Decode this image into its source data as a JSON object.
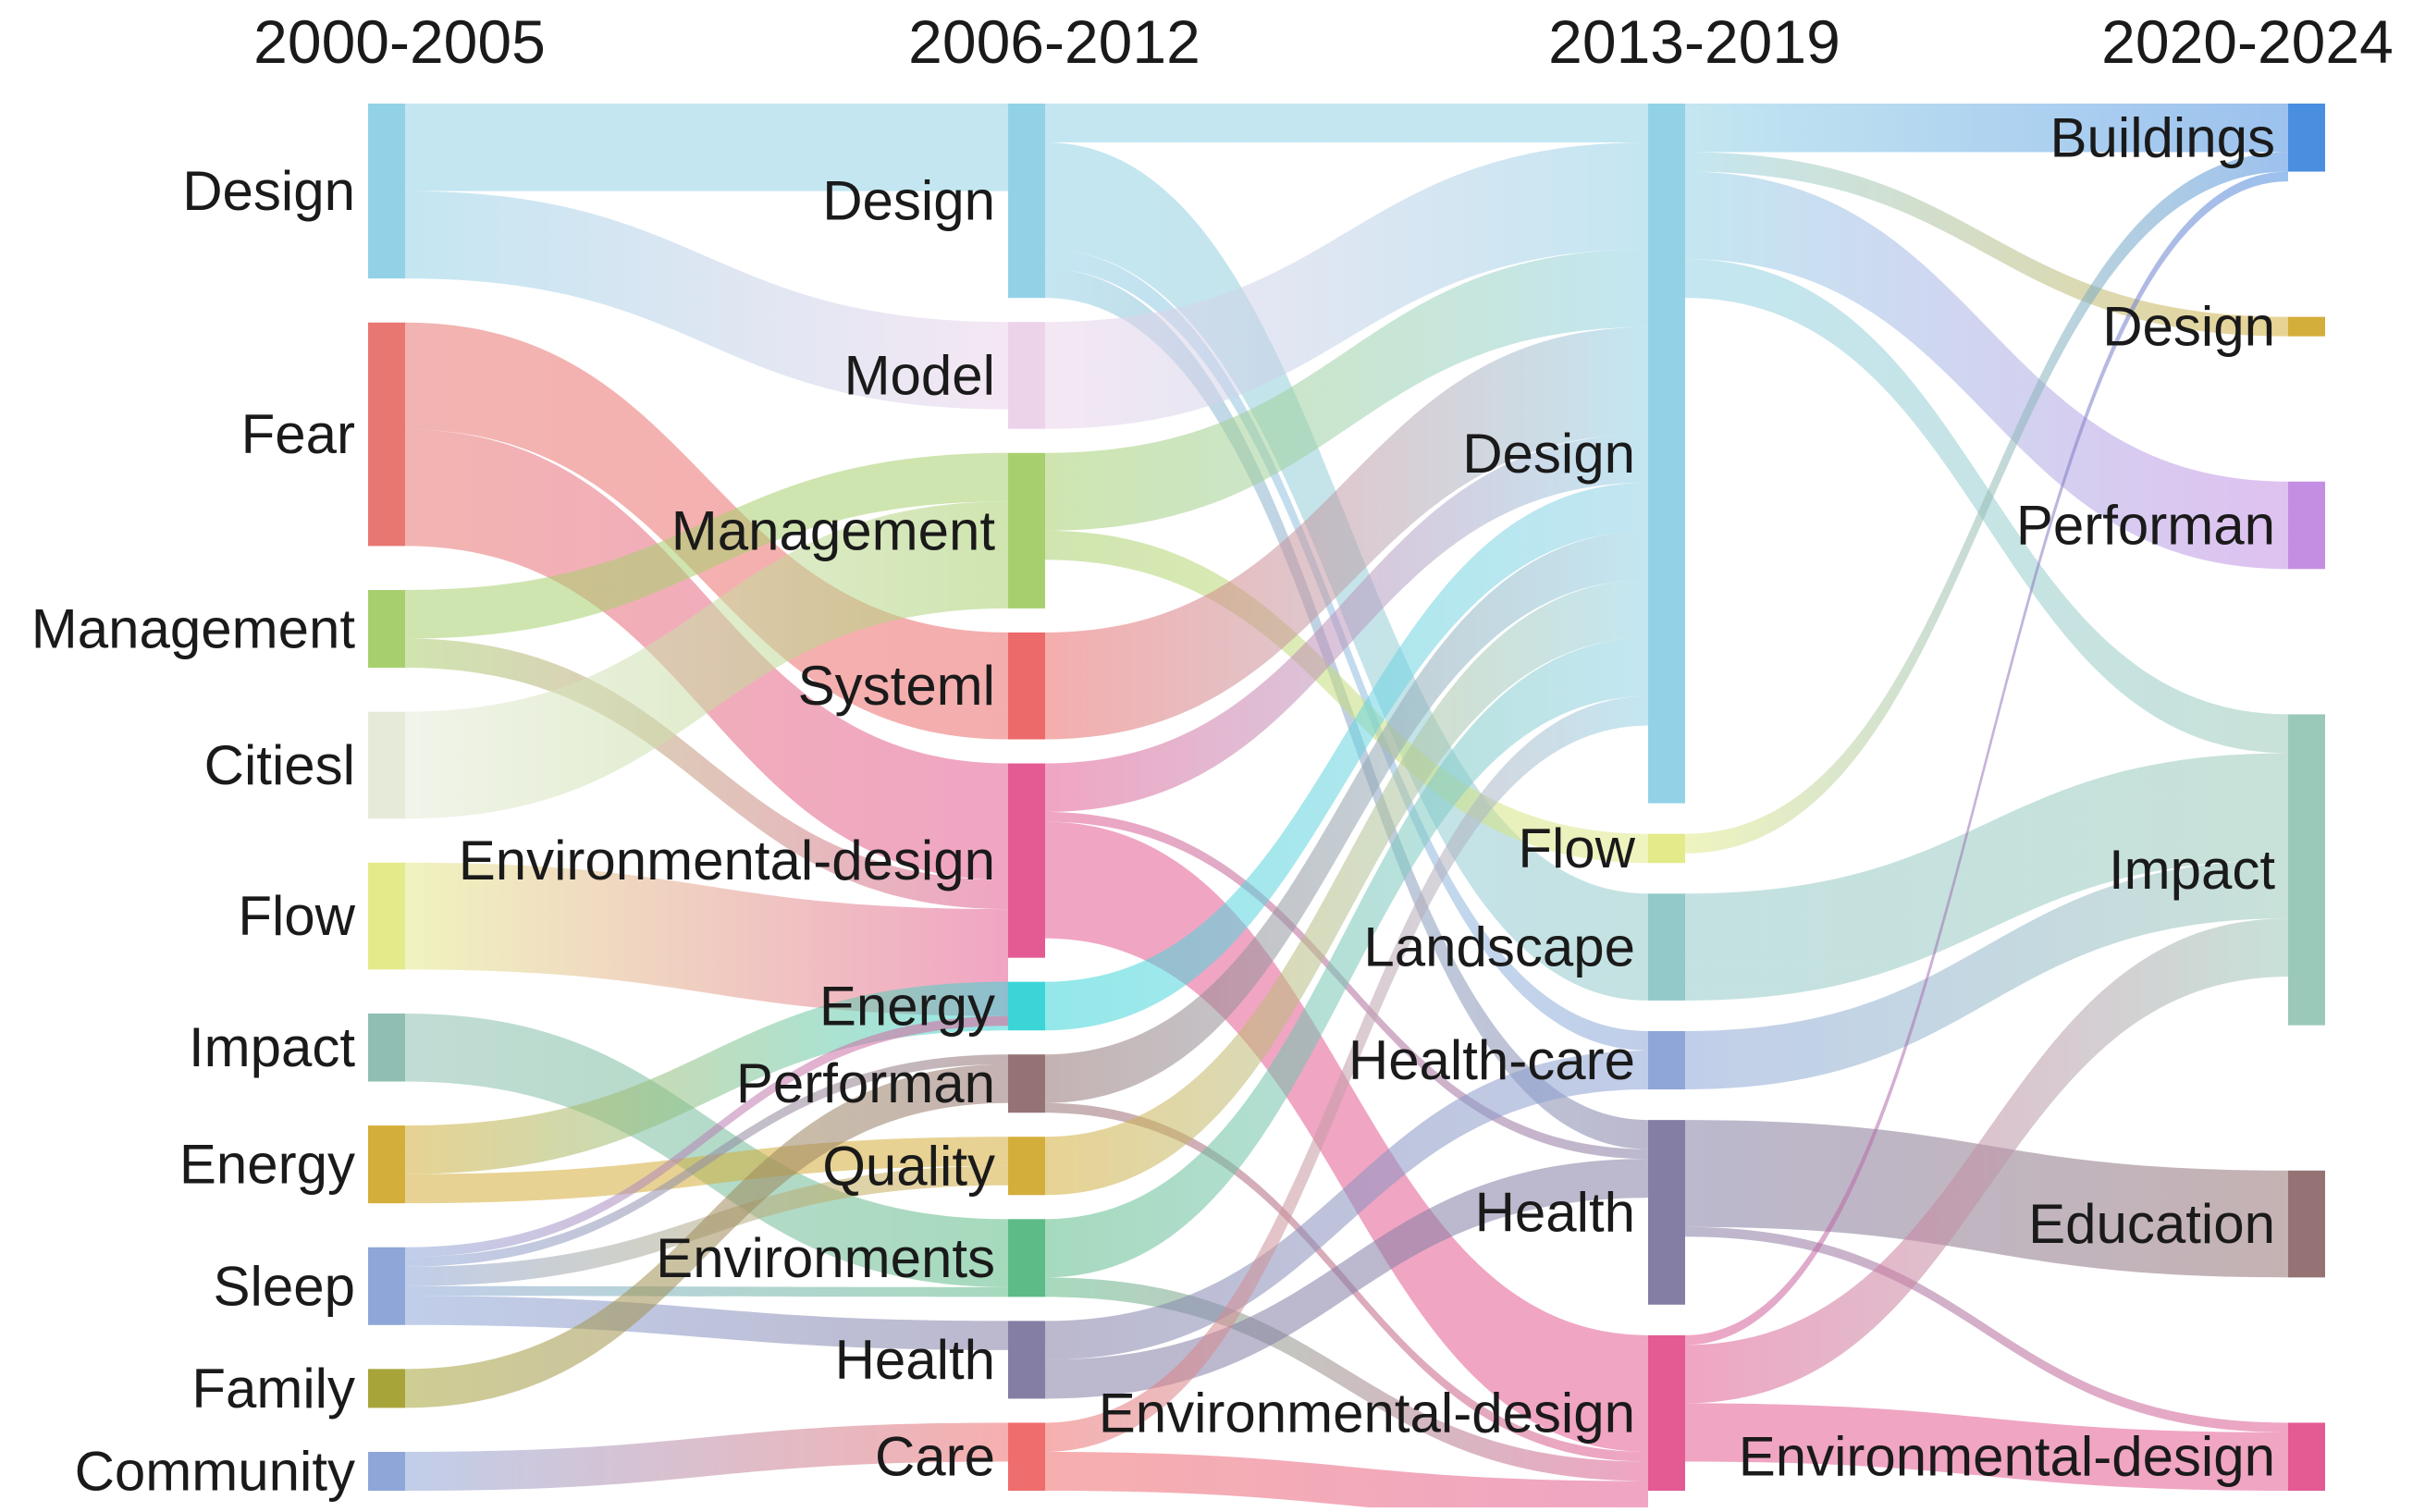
{
  "chart_data": {
    "type": "sankey",
    "title": "",
    "periods": [
      "2000-2005",
      "2006-2012",
      "2013-2019",
      "2020-2024"
    ],
    "nodes": [
      {
        "id": "p1-design",
        "label": "Design",
        "period": 0,
        "value": 18,
        "color": "#93d2e6"
      },
      {
        "id": "p1-fear",
        "label": "Fear",
        "period": 0,
        "value": 23,
        "color": "#e87772"
      },
      {
        "id": "p1-management",
        "label": "Management",
        "period": 0,
        "value": 8,
        "color": "#a8cf6e"
      },
      {
        "id": "p1-citiesl",
        "label": "Citiesl",
        "period": 0,
        "value": 11,
        "color": "#e6ebd9"
      },
      {
        "id": "p1-flow",
        "label": "Flow",
        "period": 0,
        "value": 11,
        "color": "#e3ea8a"
      },
      {
        "id": "p1-impact",
        "label": "Impact",
        "period": 0,
        "value": 7,
        "color": "#8fbfb2"
      },
      {
        "id": "p1-energy",
        "label": "Energy",
        "period": 0,
        "value": 8,
        "color": "#d4ae3a"
      },
      {
        "id": "p1-sleep",
        "label": "Sleep",
        "period": 0,
        "value": 8,
        "color": "#8ea6d8"
      },
      {
        "id": "p1-family",
        "label": "Family",
        "period": 0,
        "value": 4,
        "color": "#a7a53a"
      },
      {
        "id": "p1-community",
        "label": "Community",
        "period": 0,
        "value": 4,
        "color": "#8ea6d8"
      },
      {
        "id": "p2-design",
        "label": "Design",
        "period": 1,
        "value": 20,
        "color": "#93d2e6"
      },
      {
        "id": "p2-model",
        "label": "Model",
        "period": 1,
        "value": 11,
        "color": "#ecd3ea"
      },
      {
        "id": "p2-management",
        "label": "Management",
        "period": 1,
        "value": 16,
        "color": "#a8cf6e"
      },
      {
        "id": "p2-systeml",
        "label": "Systeml",
        "period": 1,
        "value": 11,
        "color": "#ec6a6a"
      },
      {
        "id": "p2-envdesign",
        "label": "Environmental-design",
        "period": 1,
        "value": 20,
        "color": "#e35b92"
      },
      {
        "id": "p2-energy",
        "label": "Energy",
        "period": 1,
        "value": 5,
        "color": "#3bd5d8"
      },
      {
        "id": "p2-performan",
        "label": "Performan",
        "period": 1,
        "value": 6,
        "color": "#957374"
      },
      {
        "id": "p2-quality",
        "label": "Quality",
        "period": 1,
        "value": 6,
        "color": "#d4ae3a"
      },
      {
        "id": "p2-environments",
        "label": "Environments",
        "period": 1,
        "value": 8,
        "color": "#5dbb87"
      },
      {
        "id": "p2-health",
        "label": "Health",
        "period": 1,
        "value": 8,
        "color": "#847ea5"
      },
      {
        "id": "p2-care",
        "label": "Care",
        "period": 1,
        "value": 7,
        "color": "#ef6d6d"
      },
      {
        "id": "p3-design",
        "label": "Design",
        "period": 2,
        "value": 72,
        "color": "#93d2e6"
      },
      {
        "id": "p3-flow",
        "label": "Flow",
        "period": 2,
        "value": 3,
        "color": "#e3ea8a"
      },
      {
        "id": "p3-landscape",
        "label": "Landscape",
        "period": 2,
        "value": 11,
        "color": "#93c9c9"
      },
      {
        "id": "p3-healthcare",
        "label": "Health-care",
        "period": 2,
        "value": 6,
        "color": "#8ea6d8"
      },
      {
        "id": "p3-health",
        "label": "Health",
        "period": 2,
        "value": 19,
        "color": "#847ea5"
      },
      {
        "id": "p3-envdesign",
        "label": "Environmental-design",
        "period": 2,
        "value": 16,
        "color": "#e35b92"
      },
      {
        "id": "p4-buildings",
        "label": "Buildings",
        "period": 3,
        "value": 7,
        "color": "#4a8ee0"
      },
      {
        "id": "p4-design",
        "label": "Design",
        "period": 3,
        "value": 2,
        "color": "#d4ae3a"
      },
      {
        "id": "p4-performan",
        "label": "Performan",
        "period": 3,
        "value": 9,
        "color": "#c48ee3"
      },
      {
        "id": "p4-impact",
        "label": "Impact",
        "period": 3,
        "value": 32,
        "color": "#9bc9b9"
      },
      {
        "id": "p4-education",
        "label": "Education",
        "period": 3,
        "value": 11,
        "color": "#957374"
      },
      {
        "id": "p4-envdesign",
        "label": "Environmental-design",
        "period": 3,
        "value": 7,
        "color": "#e35b92"
      }
    ],
    "links": [
      {
        "source": "p1-design",
        "target": "p2-design",
        "value": 9
      },
      {
        "source": "p1-design",
        "target": "p2-model",
        "value": 9
      },
      {
        "source": "p1-fear",
        "target": "p2-systeml",
        "value": 11
      },
      {
        "source": "p1-fear",
        "target": "p2-envdesign",
        "value": 12
      },
      {
        "source": "p1-management",
        "target": "p2-management",
        "value": 5
      },
      {
        "source": "p1-management",
        "target": "p2-envdesign",
        "value": 3
      },
      {
        "source": "p1-citiesl",
        "target": "p2-management",
        "value": 11
      },
      {
        "source": "p1-flow",
        "target": "p2-envdesign",
        "value": 11
      },
      {
        "source": "p1-impact",
        "target": "p2-environments",
        "value": 7
      },
      {
        "source": "p1-energy",
        "target": "p2-energy",
        "value": 5
      },
      {
        "source": "p1-energy",
        "target": "p2-quality",
        "value": 3
      },
      {
        "source": "p1-sleep",
        "target": "p2-envdesign",
        "value": 1
      },
      {
        "source": "p1-sleep",
        "target": "p2-performan",
        "value": 1
      },
      {
        "source": "p1-sleep",
        "target": "p2-quality",
        "value": 2
      },
      {
        "source": "p1-sleep",
        "target": "p2-environments",
        "value": 1
      },
      {
        "source": "p1-sleep",
        "target": "p2-health",
        "value": 3
      },
      {
        "source": "p1-family",
        "target": "p2-performan",
        "value": 4
      },
      {
        "source": "p1-community",
        "target": "p2-care",
        "value": 4
      },
      {
        "source": "p2-design",
        "target": "p3-design",
        "value": 4
      },
      {
        "source": "p2-design",
        "target": "p3-landscape",
        "value": 11
      },
      {
        "source": "p2-design",
        "target": "p3-health",
        "value": 3
      },
      {
        "source": "p2-design",
        "target": "p3-healthcare",
        "value": 2
      },
      {
        "source": "p2-model",
        "target": "p3-design",
        "value": 11
      },
      {
        "source": "p2-management",
        "target": "p3-design",
        "value": 8
      },
      {
        "source": "p2-management",
        "target": "p3-flow",
        "value": 3
      },
      {
        "source": "p2-systeml",
        "target": "p3-design",
        "value": 11
      },
      {
        "source": "p2-envdesign",
        "target": "p3-design",
        "value": 5
      },
      {
        "source": "p2-envdesign",
        "target": "p3-envdesign",
        "value": 12
      },
      {
        "source": "p2-envdesign",
        "target": "p3-health",
        "value": 1
      },
      {
        "source": "p2-energy",
        "target": "p3-design",
        "value": 5
      },
      {
        "source": "p2-performan",
        "target": "p3-design",
        "value": 5
      },
      {
        "source": "p2-performan",
        "target": "p3-envdesign",
        "value": 1
      },
      {
        "source": "p2-quality",
        "target": "p3-design",
        "value": 6
      },
      {
        "source": "p2-environments",
        "target": "p3-design",
        "value": 6
      },
      {
        "source": "p2-environments",
        "target": "p3-envdesign",
        "value": 2
      },
      {
        "source": "p2-health",
        "target": "p3-healthcare",
        "value": 4
      },
      {
        "source": "p2-health",
        "target": "p3-health",
        "value": 4
      },
      {
        "source": "p2-care",
        "target": "p3-design",
        "value": 3
      },
      {
        "source": "p2-care",
        "target": "p3-envdesign",
        "value": 4
      },
      {
        "source": "p3-design",
        "target": "p4-buildings",
        "value": 5
      },
      {
        "source": "p3-design",
        "target": "p4-design",
        "value": 2
      },
      {
        "source": "p3-design",
        "target": "p4-performan",
        "value": 9
      },
      {
        "source": "p3-design",
        "target": "p4-impact",
        "value": 4
      },
      {
        "source": "p3-flow",
        "target": "p4-buildings",
        "value": 2
      },
      {
        "source": "p3-landscape",
        "target": "p4-impact",
        "value": 11
      },
      {
        "source": "p3-healthcare",
        "target": "p4-impact",
        "value": 6
      },
      {
        "source": "p3-health",
        "target": "p4-education",
        "value": 11
      },
      {
        "source": "p3-health",
        "target": "p4-envdesign",
        "value": 1
      },
      {
        "source": "p3-envdesign",
        "target": "p4-impact",
        "value": 6
      },
      {
        "source": "p3-envdesign",
        "target": "p4-envdesign",
        "value": 6
      },
      {
        "source": "p3-envdesign",
        "target": "p4-buildings",
        "value": 1
      }
    ]
  }
}
